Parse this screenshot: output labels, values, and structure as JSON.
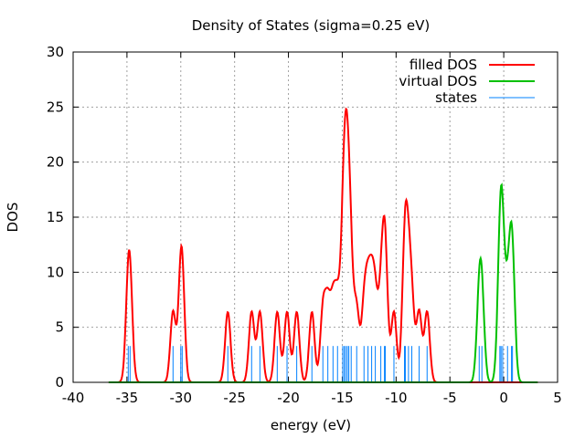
{
  "chart_data": {
    "type": "line",
    "title": "Density of States (sigma=0.25 eV)",
    "xlabel": "energy (eV)",
    "ylabel": "DOS",
    "xlim": [
      -40,
      5
    ],
    "ylim": [
      0,
      30
    ],
    "xticks": [
      -40,
      -35,
      -30,
      -25,
      -20,
      -15,
      -10,
      -5,
      0,
      5
    ],
    "yticks": [
      0,
      5,
      10,
      15,
      20,
      25,
      30
    ],
    "grid": true,
    "legend_position": "top-right",
    "sigma": 0.25,
    "state_weight": 4.0,
    "curve_range": [
      -36.7,
      3.2
    ],
    "state_marker_height": 3.3,
    "series": [
      {
        "name": "filled DOS",
        "color": "#ff0000",
        "states": [
          -34.88,
          -34.71,
          -30.72,
          -30.0,
          -29.87,
          -25.63,
          -23.42,
          -22.65,
          -21.04,
          -20.13,
          -19.23,
          -17.82,
          -16.8,
          -16.34,
          -15.86,
          -15.44,
          -14.96,
          -14.82,
          -14.68,
          -14.53,
          -14.39,
          -14.17,
          -13.66,
          -12.98,
          -12.61,
          -12.27,
          -11.93,
          -11.42,
          -11.08,
          -11.0,
          -10.2,
          -9.22,
          -9.13,
          -8.85,
          -8.54,
          -7.86,
          -7.12
        ]
      },
      {
        "name": "virtual DOS",
        "color": "#00c000",
        "states": [
          -2.28,
          -2.03,
          -0.36,
          -0.25,
          -0.1,
          0.35,
          0.72,
          0.81
        ]
      },
      {
        "name": "states",
        "color": "#0080ff"
      }
    ]
  }
}
